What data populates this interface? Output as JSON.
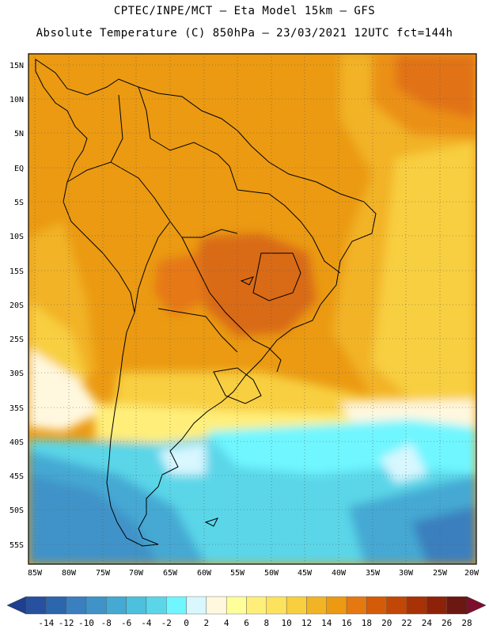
{
  "header": {
    "line1": "CPTEC/INPE/MCT –  Eta Model 15km – GFS",
    "line2": "Absolute Temperature (C) 850hPa – 23/03/2021 12UTC fct=144h"
  },
  "map": {
    "lat_labels": [
      "15N",
      "10N",
      "5N",
      "EQ",
      "5S",
      "10S",
      "15S",
      "20S",
      "25S",
      "30S",
      "35S",
      "40S",
      "45S",
      "50S",
      "55S"
    ],
    "lon_labels": [
      "85W",
      "80W",
      "75W",
      "70W",
      "65W",
      "60W",
      "55W",
      "50W",
      "45W",
      "40W",
      "35W",
      "30W",
      "25W",
      "20W"
    ],
    "extent": {
      "lon_min": -86,
      "lon_max": -19.5,
      "lat_max": 16,
      "lat_min": -57.5
    },
    "grid": "dotted"
  },
  "colorbar": {
    "labels": [
      "-14",
      "-12",
      "-10",
      "-8",
      "-6",
      "-4",
      "-2",
      "0",
      "2",
      "4",
      "6",
      "8",
      "10",
      "12",
      "14",
      "16",
      "18",
      "20",
      "22",
      "24",
      "26",
      "28"
    ],
    "colors": [
      "#1f3f8f",
      "#27519f",
      "#2c66ad",
      "#3a7fbe",
      "#3f93c8",
      "#44a9d3",
      "#4cc0dc",
      "#5ad6e8",
      "#6ff6ff",
      "#d8f7ff",
      "#fff8df",
      "#ffff9a",
      "#ffef7a",
      "#fde25e",
      "#f8cf3f",
      "#f2b325",
      "#eb9a12",
      "#e67812",
      "#d65b08",
      "#c24706",
      "#a83205",
      "#8e2208",
      "#6b1712",
      "#7d0f2d"
    ]
  },
  "colors": {
    "temp_hot": "#d96a12",
    "temp_warm": "#eb9a12",
    "temp_mild": "#f2b325",
    "temp_yellow": "#f8cf3f",
    "temp_cool": "#fff8df",
    "temp_cold": "#5ad6e8",
    "temp_colder": "#3f93c8"
  }
}
